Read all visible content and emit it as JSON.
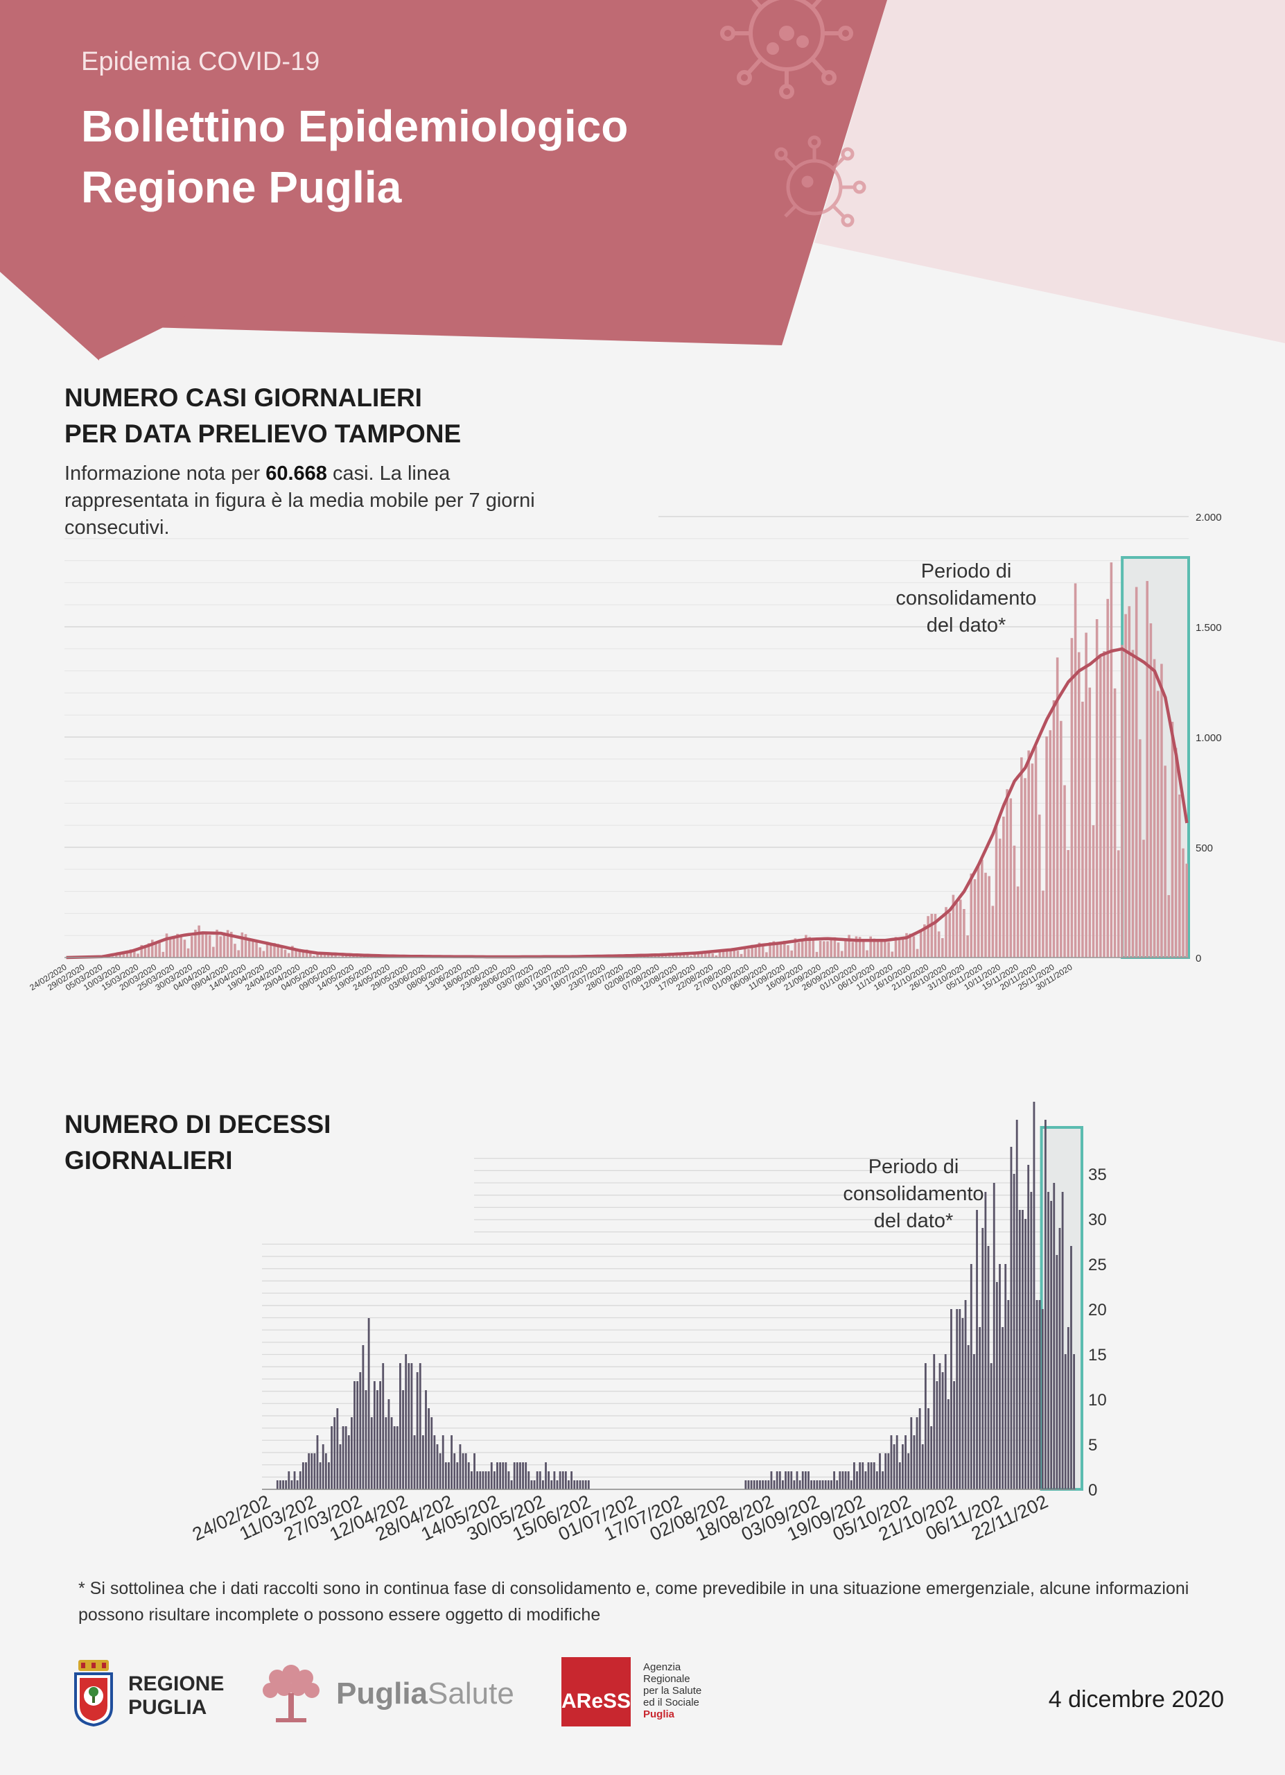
{
  "header": {
    "kicker": "Epidemia COVID-19",
    "title_line1": "Bollettino Epidemiologico",
    "title_line2": "Regione Puglia",
    "brand_color": "#bf6a73",
    "light_color": "#f2e1e3"
  },
  "cases_section": {
    "title_line1": "NUMERO CASI GIORNALIERI",
    "title_line2": "PER DATA PRELIEVO TAMPONE",
    "desc_pre": "Informazione nota per",
    "desc_bold": "60.668",
    "desc_post": "casi. La linea rappresentata in figura è la media mobile per 7 giorni consecutivi."
  },
  "deaths_section": {
    "title_line1": "NUMERO DI DECESSI",
    "title_line2": "GIORNALIERI"
  },
  "footnote": "* Si sottolinea che i dati raccolti sono in continua fase di consolidamento e, come prevedibile in una situazione emergenziale, alcune informazioni possono risultare incomplete o possono essere oggetto di modifiche",
  "footer": {
    "date": "4 dicembre 2020",
    "logo1_line1": "REGIONE",
    "logo1_line2": "PUGLIA",
    "logo2_bold": "Puglia",
    "logo2_light": "Salute",
    "logo3_mark": "AReSS",
    "logo3_lines": [
      "Agenzia",
      "Regionale",
      "per la Salute",
      "ed il Sociale",
      "Puglia"
    ]
  },
  "chart_data": [
    {
      "type": "bar",
      "title": "NUMERO CASI GIORNALIERI PER DATA PRELIEVO TAMPONE",
      "ylim": [
        0,
        2000
      ],
      "y_ticks": [
        0,
        500,
        1000,
        1500,
        2000
      ],
      "y_tick_labels": [
        "0",
        "500",
        "1.000",
        "1.500",
        "2.000"
      ],
      "x_tick_labels": [
        "24/02/2020",
        "29/02/2020",
        "05/03/2020",
        "10/03/2020",
        "15/03/2020",
        "20/03/2020",
        "25/03/2020",
        "30/03/2020",
        "04/04/2020",
        "09/04/2020",
        "14/04/2020",
        "19/04/2020",
        "24/04/2020",
        "29/04/2020",
        "04/05/2020",
        "09/05/2020",
        "14/05/2020",
        "19/05/2020",
        "24/05/2020",
        "29/05/2020",
        "03/06/2020",
        "08/06/2020",
        "13/06/2020",
        "18/06/2020",
        "23/06/2020",
        "28/06/2020",
        "03/07/2020",
        "08/07/2020",
        "13/07/2020",
        "18/07/2020",
        "23/07/2020",
        "28/07/2020",
        "02/08/2020",
        "07/08/2020",
        "12/08/2020",
        "17/08/2020",
        "22/08/2020",
        "27/08/2020",
        "01/09/2020",
        "06/09/2020",
        "11/09/2020",
        "16/09/2020",
        "21/09/2020",
        "26/09/2020",
        "01/10/2020",
        "06/10/2020",
        "11/10/2020",
        "16/10/2020",
        "21/10/2020",
        "26/10/2020",
        "31/10/2020",
        "05/11/2020",
        "10/11/2020",
        "15/11/2020",
        "20/11/2020",
        "25/11/2020",
        "30/11/2020"
      ],
      "bar_color": "#d19aa0",
      "line_color": "#b5515f",
      "bar_series_name": "casi giornalieri",
      "line_series_name": "media mobile 7 giorni",
      "annotation": "Periodo di consolidamento del dato*",
      "consolidation_start": "25/11/2020",
      "consolidation_end": "03/12/2020",
      "keypoints_bars": [
        [
          0,
          0
        ],
        [
          10,
          5
        ],
        [
          18,
          30
        ],
        [
          23,
          60
        ],
        [
          28,
          90
        ],
        [
          33,
          110
        ],
        [
          38,
          120
        ],
        [
          43,
          115
        ],
        [
          48,
          95
        ],
        [
          55,
          70
        ],
        [
          60,
          55
        ],
        [
          65,
          35
        ],
        [
          70,
          20
        ],
        [
          80,
          12
        ],
        [
          90,
          7
        ],
        [
          100,
          5
        ],
        [
          120,
          3
        ],
        [
          140,
          4
        ],
        [
          155,
          8
        ],
        [
          165,
          12
        ],
        [
          175,
          20
        ],
        [
          185,
          35
        ],
        [
          193,
          55
        ],
        [
          200,
          70
        ],
        [
          206,
          85
        ],
        [
          212,
          90
        ],
        [
          220,
          82
        ],
        [
          228,
          80
        ],
        [
          234,
          95
        ],
        [
          238,
          130
        ],
        [
          242,
          175
        ],
        [
          246,
          230
        ],
        [
          250,
          320
        ],
        [
          254,
          420
        ],
        [
          258,
          540
        ],
        [
          261,
          640
        ],
        [
          264,
          780
        ],
        [
          267,
          880
        ],
        [
          270,
          960
        ],
        [
          273,
          1080
        ],
        [
          276,
          1180
        ],
        [
          279,
          1320
        ],
        [
          282,
          1380
        ],
        [
          285,
          1400
        ],
        [
          288,
          1460
        ],
        [
          291,
          1500
        ],
        [
          294,
          1560
        ],
        [
          297,
          1520
        ],
        [
          300,
          1450
        ],
        [
          303,
          1300
        ],
        [
          306,
          1050
        ],
        [
          309,
          780
        ],
        [
          312,
          480
        ]
      ],
      "keypoints_ma": [
        [
          0,
          0
        ],
        [
          10,
          4
        ],
        [
          18,
          28
        ],
        [
          23,
          55
        ],
        [
          28,
          85
        ],
        [
          33,
          102
        ],
        [
          38,
          112
        ],
        [
          43,
          110
        ],
        [
          48,
          92
        ],
        [
          55,
          68
        ],
        [
          60,
          50
        ],
        [
          65,
          32
        ],
        [
          70,
          20
        ],
        [
          80,
          12
        ],
        [
          90,
          7
        ],
        [
          100,
          5
        ],
        [
          120,
          3
        ],
        [
          140,
          4
        ],
        [
          155,
          8
        ],
        [
          165,
          12
        ],
        [
          175,
          20
        ],
        [
          185,
          35
        ],
        [
          193,
          55
        ],
        [
          200,
          68
        ],
        [
          206,
          82
        ],
        [
          212,
          86
        ],
        [
          220,
          78
        ],
        [
          228,
          78
        ],
        [
          234,
          90
        ],
        [
          238,
          122
        ],
        [
          242,
          160
        ],
        [
          246,
          215
        ],
        [
          250,
          300
        ],
        [
          254,
          420
        ],
        [
          258,
          560
        ],
        [
          261,
          690
        ],
        [
          264,
          800
        ],
        [
          267,
          860
        ],
        [
          270,
          970
        ],
        [
          273,
          1080
        ],
        [
          276,
          1170
        ],
        [
          279,
          1250
        ],
        [
          282,
          1300
        ],
        [
          285,
          1330
        ],
        [
          288,
          1370
        ],
        [
          291,
          1390
        ],
        [
          294,
          1400
        ],
        [
          297,
          1370
        ],
        [
          300,
          1340
        ],
        [
          303,
          1300
        ],
        [
          306,
          1180
        ],
        [
          309,
          920
        ],
        [
          312,
          610
        ]
      ]
    },
    {
      "type": "bar",
      "title": "NUMERO DI DECESSI GIORNALIERI",
      "ylim": [
        0,
        35
      ],
      "y_ticks": [
        0,
        5,
        10,
        15,
        20,
        25,
        30,
        35
      ],
      "x_tick_labels": [
        "24/02/202",
        "11/03/202",
        "27/03/202",
        "12/04/202",
        "28/04/202",
        "14/05/202",
        "30/05/202",
        "15/06/202",
        "01/07/202",
        "17/07/202",
        "02/08/202",
        "18/08/202",
        "03/09/202",
        "19/09/202",
        "05/10/202",
        "21/10/202",
        "06/11/202",
        "22/11/202"
      ],
      "bar_color": "#5a5468",
      "annotation": "Periodo di consolidamento del dato*",
      "consolidation_start": "25/11/2020",
      "consolidation_end": "03/12/2020",
      "keypoints": [
        [
          0,
          0
        ],
        [
          8,
          1
        ],
        [
          16,
          3
        ],
        [
          22,
          5
        ],
        [
          28,
          8
        ],
        [
          32,
          12
        ],
        [
          36,
          14
        ],
        [
          40,
          12
        ],
        [
          44,
          12
        ],
        [
          48,
          13
        ],
        [
          52,
          11
        ],
        [
          56,
          10
        ],
        [
          60,
          6
        ],
        [
          66,
          4
        ],
        [
          72,
          3
        ],
        [
          80,
          3
        ],
        [
          90,
          2
        ],
        [
          100,
          2
        ],
        [
          110,
          1
        ],
        [
          120,
          0
        ],
        [
          140,
          0
        ],
        [
          160,
          0
        ],
        [
          175,
          1
        ],
        [
          185,
          2
        ],
        [
          195,
          1
        ],
        [
          205,
          2
        ],
        [
          215,
          3
        ],
        [
          225,
          5
        ],
        [
          232,
          10
        ],
        [
          238,
          14
        ],
        [
          244,
          18
        ],
        [
          250,
          22
        ],
        [
          256,
          25
        ],
        [
          262,
          28
        ],
        [
          268,
          30
        ],
        [
          272,
          32
        ],
        [
          276,
          29
        ],
        [
          280,
          27
        ],
        [
          284,
          25
        ]
      ]
    }
  ]
}
